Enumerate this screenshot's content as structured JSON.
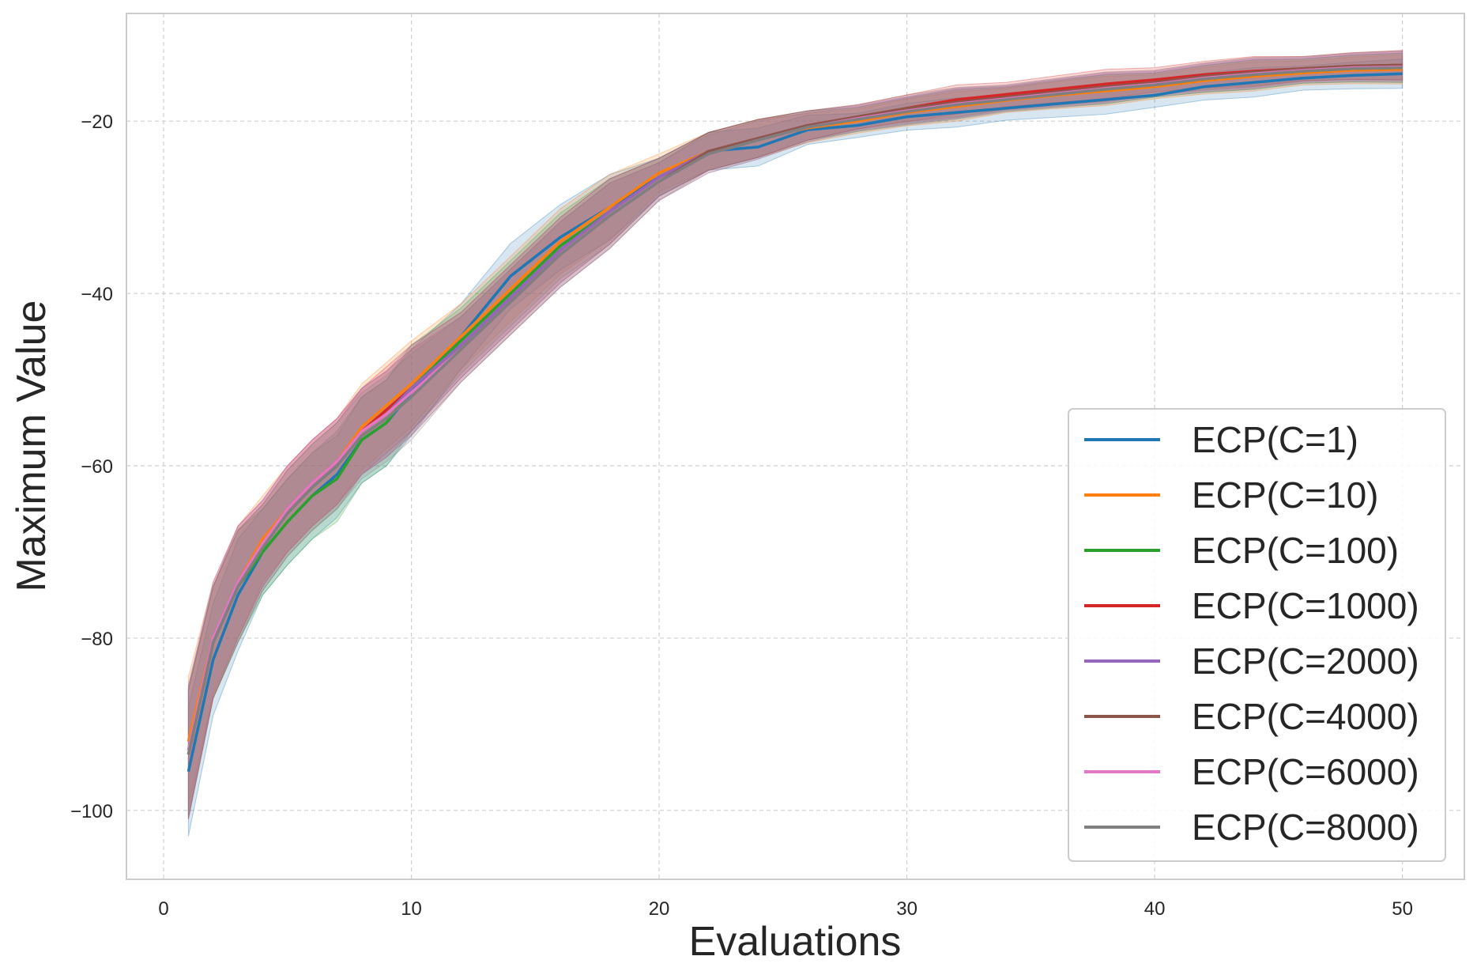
{
  "chart_data": {
    "type": "line",
    "title": "",
    "xlabel": "Evaluations",
    "ylabel": "Maximum Value",
    "xlim": [
      -1.5,
      52.5
    ],
    "ylim": [
      -108,
      -7.5
    ],
    "xticks": [
      0,
      10,
      20,
      30,
      40,
      50
    ],
    "yticks": [
      -100,
      -80,
      -60,
      -40,
      -20
    ],
    "ytick_labels": [
      "−100",
      "−80",
      "−60",
      "−40",
      "−20"
    ],
    "grid": true,
    "legend_position": "lower-right",
    "band_note": "shaded confidence band around each series",
    "x": [
      1,
      2,
      3,
      4,
      5,
      6,
      7,
      8,
      9,
      10,
      12,
      14,
      16,
      18,
      20,
      22,
      24,
      26,
      28,
      30,
      32,
      34,
      36,
      38,
      40,
      42,
      44,
      46,
      48,
      50
    ],
    "series": [
      {
        "name": "ECP(C=1)",
        "color": "#1f77b4",
        "values": [
          -95.5,
          -82.5,
          -75.0,
          -70.0,
          -66.5,
          -63.5,
          -61.0,
          -57.0,
          -55.0,
          -51.5,
          -45.0,
          -38.0,
          -33.5,
          -30.0,
          -26.5,
          -23.5,
          -23.0,
          -21.0,
          -20.5,
          -19.5,
          -19.0,
          -18.5,
          -18.0,
          -17.5,
          -17.0,
          -16.0,
          -15.5,
          -15.0,
          -14.7,
          -14.5
        ]
      },
      {
        "name": "ECP(C=10)",
        "color": "#ff7f0e",
        "values": [
          -92.0,
          -80.0,
          -73.5,
          -68.5,
          -65.0,
          -62.0,
          -59.5,
          -55.5,
          -53.0,
          -50.5,
          -45.0,
          -39.5,
          -34.0,
          -30.0,
          -26.0,
          -23.5,
          -22.0,
          -20.8,
          -20.0,
          -19.0,
          -18.3,
          -17.6,
          -17.0,
          -16.5,
          -16.0,
          -15.3,
          -14.8,
          -14.4,
          -14.1,
          -14.0
        ]
      },
      {
        "name": "ECP(C=100)",
        "color": "#2ca02c",
        "values": [
          -93.0,
          -80.5,
          -74.0,
          -70.0,
          -66.5,
          -63.5,
          -61.5,
          -57.0,
          -55.0,
          -51.0,
          -45.5,
          -40.0,
          -34.5,
          -30.5,
          -26.5,
          -23.5,
          -22.0,
          -20.5,
          -19.8,
          -18.8,
          -18.0,
          -17.4,
          -16.8,
          -16.3,
          -15.8,
          -15.1,
          -14.6,
          -14.2,
          -13.9,
          -13.8
        ]
      },
      {
        "name": "ECP(C=1000)",
        "color": "#d62728",
        "values": [
          -93.5,
          -80.5,
          -73.5,
          -69.0,
          -65.0,
          -62.0,
          -59.5,
          -56.0,
          -53.5,
          -51.0,
          -46.0,
          -40.5,
          -35.0,
          -30.5,
          -26.5,
          -23.5,
          -22.0,
          -20.5,
          -19.5,
          -18.5,
          -17.5,
          -16.9,
          -16.3,
          -15.7,
          -15.2,
          -14.6,
          -14.2,
          -13.9,
          -13.6,
          -13.5
        ]
      },
      {
        "name": "ECP(C=2000)",
        "color": "#9467bd",
        "values": [
          -93.0,
          -80.0,
          -73.5,
          -69.0,
          -65.0,
          -62.0,
          -59.5,
          -56.0,
          -54.0,
          -51.0,
          -46.0,
          -40.5,
          -35.0,
          -30.5,
          -26.5,
          -23.5,
          -22.0,
          -20.5,
          -19.6,
          -18.7,
          -17.9,
          -17.3,
          -16.7,
          -16.1,
          -15.6,
          -14.9,
          -14.4,
          -14.0,
          -13.7,
          -13.6
        ]
      },
      {
        "name": "ECP(C=4000)",
        "color": "#8c564b",
        "values": [
          -93.5,
          -80.5,
          -74.0,
          -69.5,
          -65.5,
          -62.5,
          -60.0,
          -56.0,
          -54.0,
          -51.5,
          -46.5,
          -41.0,
          -35.5,
          -31.0,
          -27.0,
          -23.5,
          -22.0,
          -20.5,
          -19.5,
          -18.5,
          -17.8,
          -17.2,
          -16.6,
          -16.0,
          -15.5,
          -14.8,
          -14.3,
          -13.9,
          -13.6,
          -13.5
        ]
      },
      {
        "name": "ECP(C=6000)",
        "color": "#e377c2",
        "values": [
          -93.0,
          -80.0,
          -73.5,
          -69.0,
          -65.0,
          -62.0,
          -59.5,
          -56.0,
          -54.0,
          -51.5,
          -46.5,
          -41.0,
          -35.5,
          -31.0,
          -27.0,
          -23.8,
          -22.2,
          -20.7,
          -19.7,
          -18.8,
          -18.0,
          -17.4,
          -16.8,
          -16.2,
          -15.7,
          -15.0,
          -14.5,
          -14.1,
          -13.8,
          -13.7
        ]
      },
      {
        "name": "ECP(C=8000)",
        "color": "#7f7f7f",
        "values": [
          -93.5,
          -80.5,
          -74.0,
          -69.5,
          -65.5,
          -62.5,
          -60.0,
          -56.5,
          -54.5,
          -52.0,
          -46.5,
          -41.0,
          -35.5,
          -31.0,
          -27.0,
          -23.8,
          -22.2,
          -20.7,
          -19.8,
          -18.9,
          -18.1,
          -17.5,
          -16.9,
          -16.3,
          -15.8,
          -15.1,
          -14.6,
          -14.2,
          -13.9,
          -13.8
        ]
      }
    ]
  }
}
